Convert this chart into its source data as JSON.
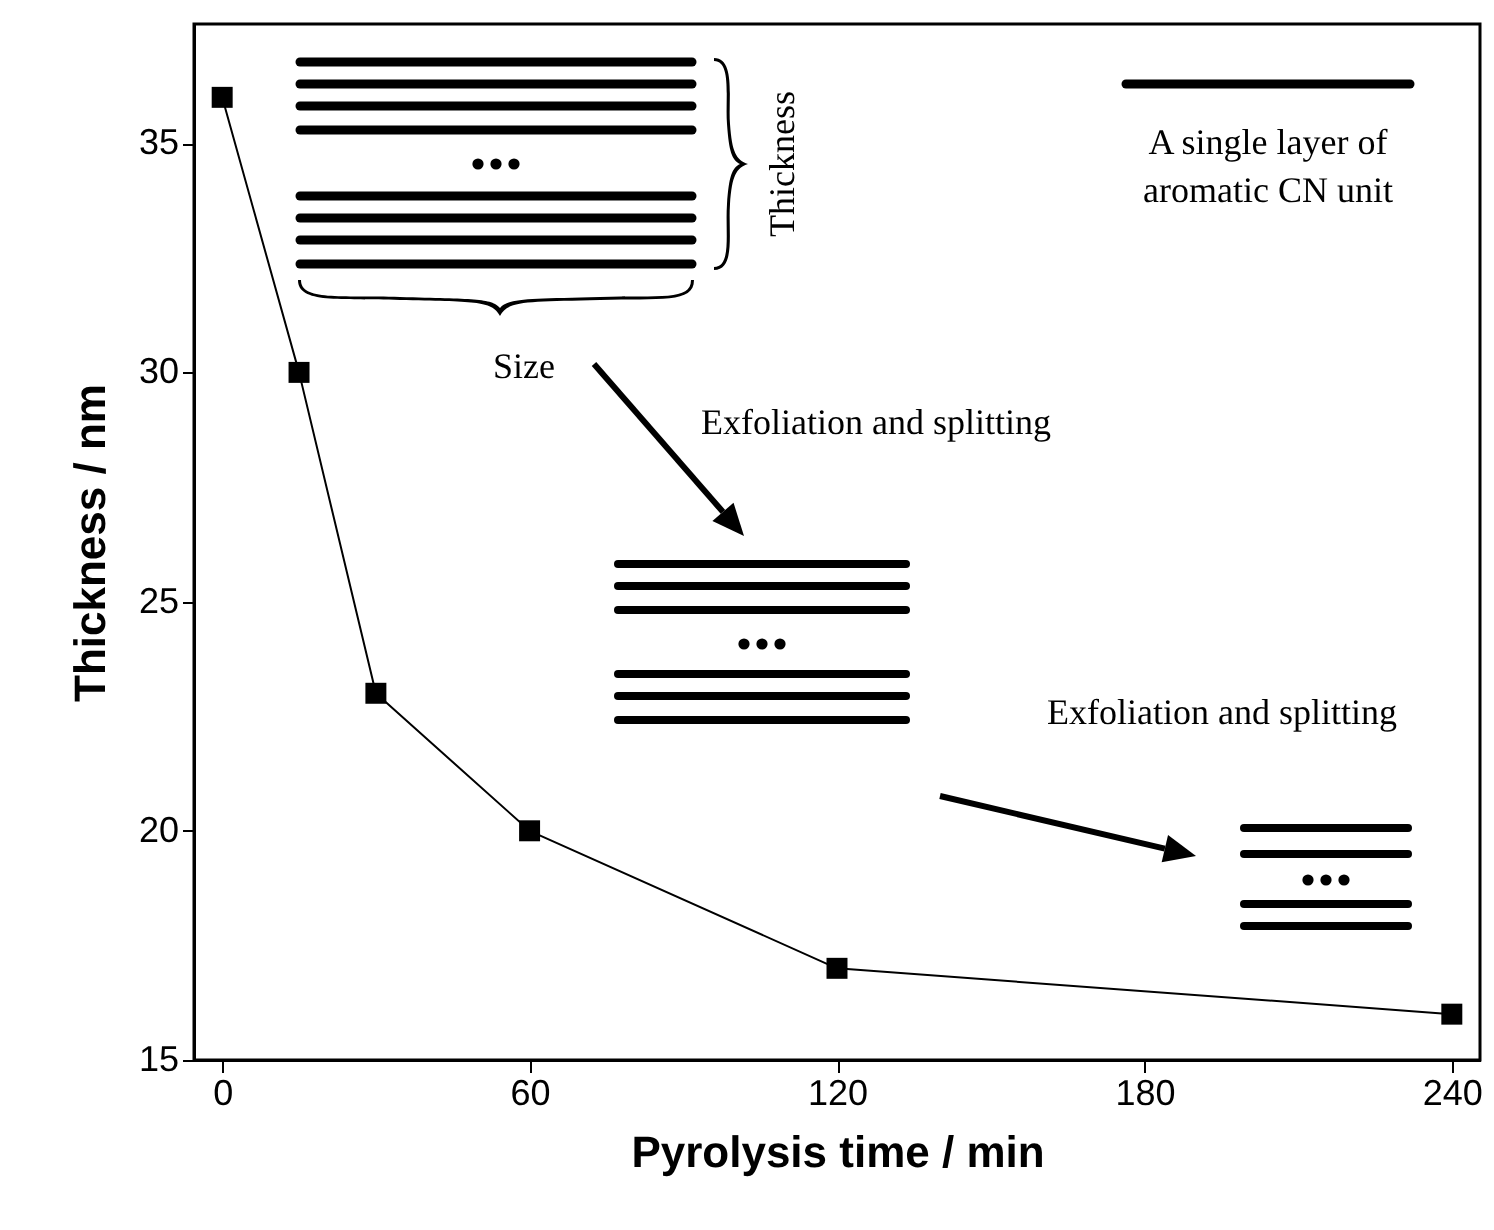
{
  "chart_data": {
    "type": "line",
    "xlabel": "Pyrolysis time / min",
    "ylabel": "Thickness / nm",
    "x": [
      0,
      15,
      30,
      60,
      120,
      240
    ],
    "series": [
      {
        "color": "#000000",
        "values": [
          36,
          30,
          23,
          20,
          17,
          16
        ]
      }
    ],
    "xlim": [
      -5.5,
      245.5
    ],
    "xticks": [
      0,
      60,
      120,
      180,
      240
    ],
    "ylim": [
      15,
      37.6
    ],
    "yticks": [
      15,
      20,
      25,
      30,
      35
    ],
    "grid": false,
    "marker": "square",
    "line_style": "solid",
    "annotations": [
      "Thickness",
      "Size",
      "Exfoliation and splitting",
      "Exfoliation and splitting",
      "A single layer of",
      "aromatic CN unit"
    ]
  }
}
